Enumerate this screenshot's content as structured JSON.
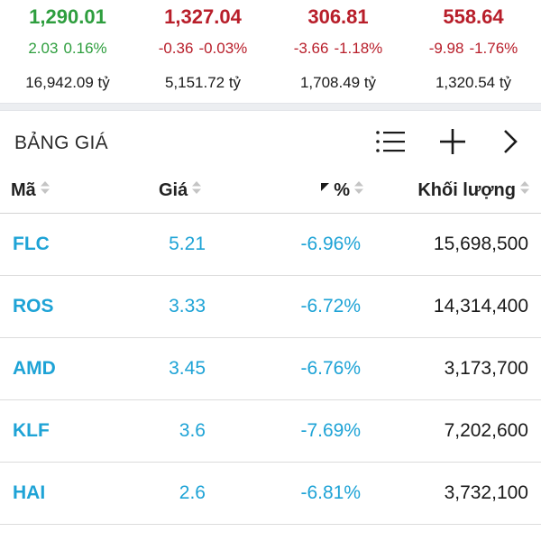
{
  "indices": [
    {
      "value": "1,290.01",
      "change": "2.03",
      "percent": "0.16%",
      "turnover": "16,942.09 tỷ",
      "trend": "up"
    },
    {
      "value": "1,327.04",
      "change": "-0.36",
      "percent": "-0.03%",
      "turnover": "5,151.72 tỷ",
      "trend": "down"
    },
    {
      "value": "306.81",
      "change": "-3.66",
      "percent": "-1.18%",
      "turnover": "1,708.49 tỷ",
      "trend": "down"
    },
    {
      "value": "558.64",
      "change": "-9.98",
      "percent": "-1.76%",
      "turnover": "1,320.54 tỷ",
      "trend": "down"
    }
  ],
  "colors": {
    "up": "#2e9e3e",
    "down": "#b81e2a",
    "accent": "#1ea3d6"
  },
  "board": {
    "title": "BẢNG GIÁ",
    "icons": [
      "list-icon",
      "plus-icon",
      "chevron-right-icon"
    ]
  },
  "table": {
    "columns": {
      "code": "Mã",
      "price": "Giá",
      "percent": "%",
      "volume": "Khối lượng"
    },
    "rows": [
      {
        "code": "FLC",
        "price": "5.21",
        "percent": "-6.96%",
        "volume": "15,698,500"
      },
      {
        "code": "ROS",
        "price": "3.33",
        "percent": "-6.72%",
        "volume": "14,314,400"
      },
      {
        "code": "AMD",
        "price": "3.45",
        "percent": "-6.76%",
        "volume": "3,173,700"
      },
      {
        "code": "KLF",
        "price": "3.6",
        "percent": "-7.69%",
        "volume": "7,202,600"
      },
      {
        "code": "HAI",
        "price": "2.6",
        "percent": "-6.81%",
        "volume": "3,732,100"
      }
    ]
  }
}
